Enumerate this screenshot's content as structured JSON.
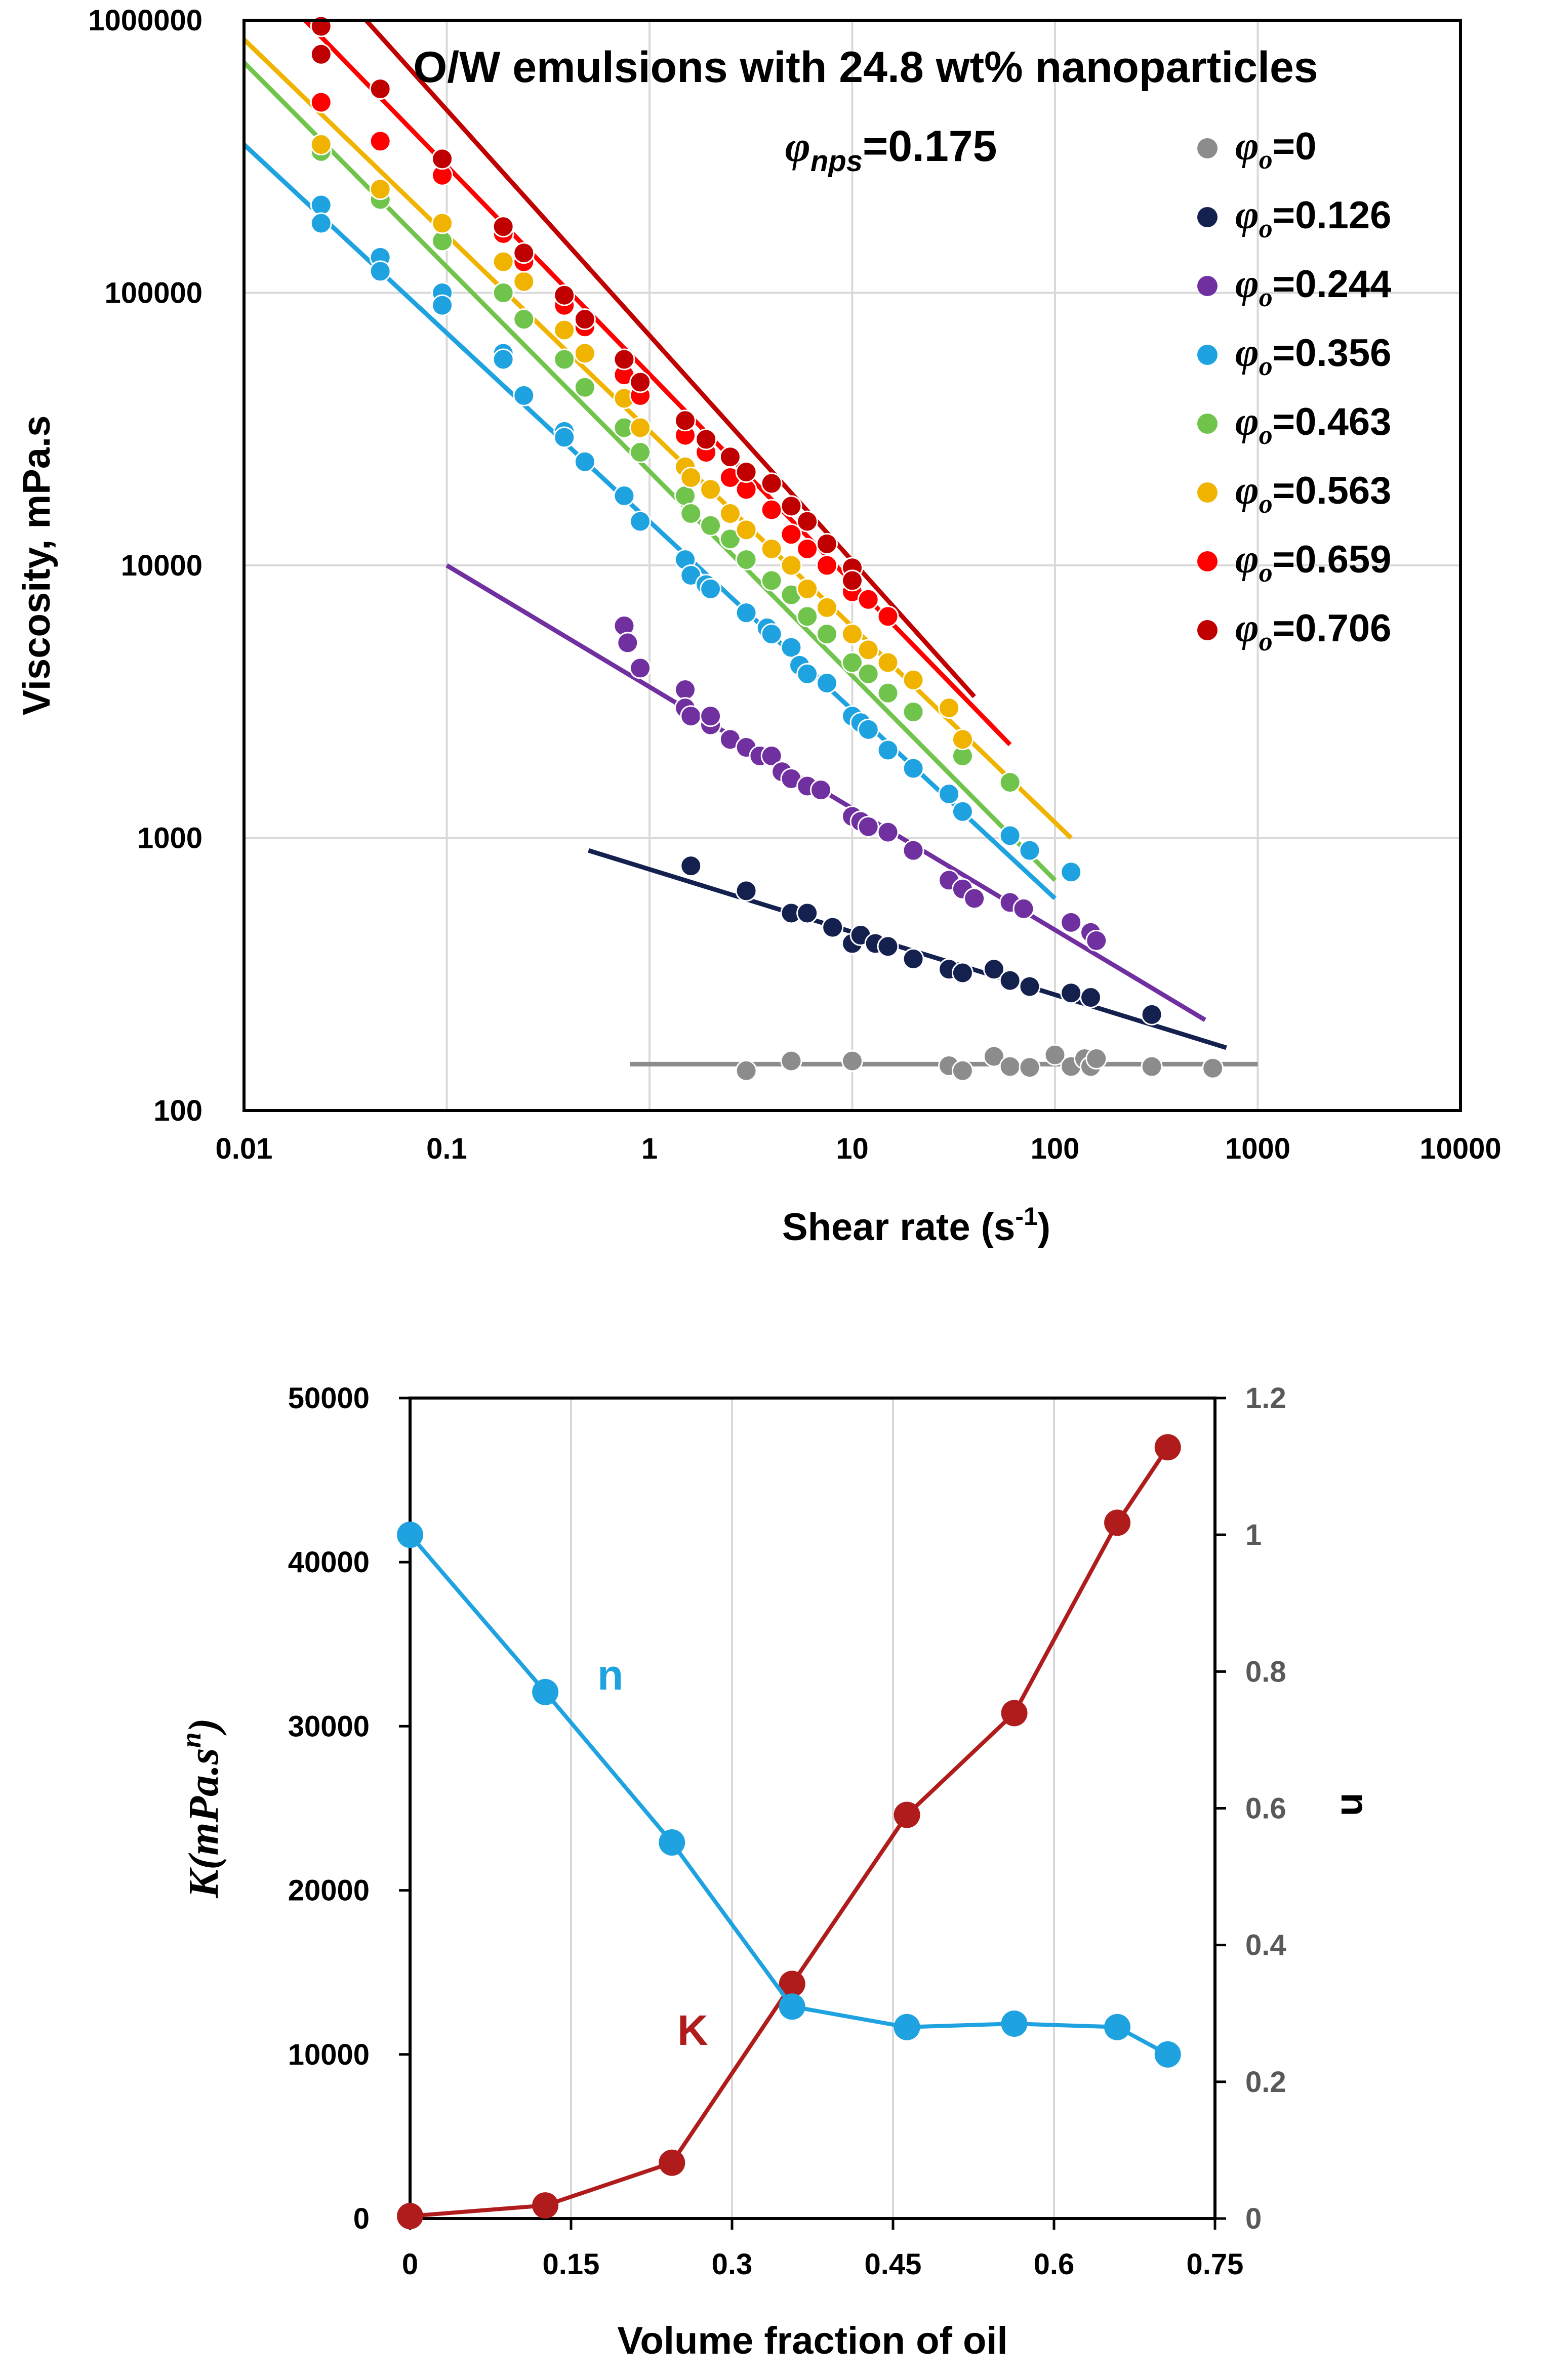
{
  "chart_data": [
    {
      "type": "scatter",
      "title": "O/W emulsions with 24.8 wt% nanoparticles",
      "subtitle": {
        "symbol": "φ",
        "sub": "nps",
        "value": "=0.175"
      },
      "xlabel": "Shear rate (s-1)",
      "ylabel": "Viscosity, mPa.s",
      "xscale": "log",
      "yscale": "log",
      "xlim": [
        0.01,
        10000
      ],
      "ylim": [
        100,
        1000000
      ],
      "xticks": [
        "0.01",
        "0.1",
        "1",
        "10",
        "100",
        "1000",
        "10000"
      ],
      "yticks": [
        "100",
        "1000",
        "10000",
        "100000",
        "1000000"
      ],
      "legend_position": "top-right",
      "series": [
        {
          "name": "φo=0",
          "label_value": "=0",
          "color": "#8c8c8c",
          "points": [
            [
              3,
              140
            ],
            [
              5,
              152
            ],
            [
              10,
              152
            ],
            [
              30,
              146
            ],
            [
              35,
              140
            ],
            [
              50,
              158
            ],
            [
              60,
              145
            ],
            [
              75,
              144
            ],
            [
              100,
              160
            ],
            [
              120,
              145
            ],
            [
              140,
              155
            ],
            [
              150,
              145
            ],
            [
              160,
              155
            ],
            [
              300,
              145
            ],
            [
              600,
              143
            ]
          ],
          "fit": [
            [
              0.8,
              148
            ],
            [
              1000,
              148
            ]
          ]
        },
        {
          "name": "φo=0.126",
          "label_value": "=0.126",
          "color": "#14214f",
          "points": [
            [
              1.6,
              790
            ],
            [
              3,
              640
            ],
            [
              5,
              530
            ],
            [
              6,
              530
            ],
            [
              8,
              470
            ],
            [
              10,
              410
            ],
            [
              11,
              440
            ],
            [
              13,
              410
            ],
            [
              15,
              400
            ],
            [
              20,
              360
            ],
            [
              30,
              330
            ],
            [
              35,
              320
            ],
            [
              50,
              330
            ],
            [
              60,
              300
            ],
            [
              75,
              285
            ],
            [
              120,
              270
            ],
            [
              150,
              260
            ],
            [
              300,
              225
            ]
          ],
          "fit": [
            [
              0.5,
              900
            ],
            [
              700,
              170
            ]
          ]
        },
        {
          "name": "φo=0.244",
          "label_value": "=0.244",
          "color": "#7030a0",
          "points": [
            [
              0.75,
              6000
            ],
            [
              0.78,
              5200
            ],
            [
              0.9,
              4200
            ],
            [
              1.5,
              3500
            ],
            [
              1.5,
              3000
            ],
            [
              1.6,
              2800
            ],
            [
              2,
              2600
            ],
            [
              2,
              2800
            ],
            [
              2.5,
              2300
            ],
            [
              3,
              2150
            ],
            [
              3.5,
              2000
            ],
            [
              4,
              2000
            ],
            [
              4.5,
              1750
            ],
            [
              5,
              1650
            ],
            [
              6,
              1550
            ],
            [
              7,
              1500
            ],
            [
              10,
              1200
            ],
            [
              11,
              1150
            ],
            [
              12,
              1100
            ],
            [
              15,
              1050
            ],
            [
              20,
              900
            ],
            [
              30,
              700
            ],
            [
              35,
              650
            ],
            [
              40,
              600
            ],
            [
              60,
              580
            ],
            [
              70,
              550
            ],
            [
              120,
              490
            ],
            [
              150,
              450
            ],
            [
              160,
              420
            ]
          ],
          "fit": [
            [
              0.1,
              10000
            ],
            [
              550,
              215
            ]
          ]
        },
        {
          "name": "φo=0.356",
          "label_value": "=0.356",
          "color": "#1fa3e0",
          "points": [
            [
              0.024,
              210000
            ],
            [
              0.024,
              180000
            ],
            [
              0.047,
              135000
            ],
            [
              0.047,
              120000
            ],
            [
              0.095,
              100000
            ],
            [
              0.095,
              90000
            ],
            [
              0.19,
              60000
            ],
            [
              0.19,
              57000
            ],
            [
              0.24,
              42000
            ],
            [
              0.38,
              31000
            ],
            [
              0.38,
              29500
            ],
            [
              0.48,
              24000
            ],
            [
              0.75,
              18000
            ],
            [
              0.9,
              14500
            ],
            [
              1.5,
              10500
            ],
            [
              1.6,
              9200
            ],
            [
              1.9,
              8500
            ],
            [
              2,
              8200
            ],
            [
              3,
              6700
            ],
            [
              3.8,
              5900
            ],
            [
              4,
              5600
            ],
            [
              5,
              5000
            ],
            [
              5.5,
              4300
            ],
            [
              6,
              4000
            ],
            [
              7.5,
              3700
            ],
            [
              10,
              2800
            ],
            [
              11,
              2650
            ],
            [
              12,
              2500
            ],
            [
              15,
              2100
            ],
            [
              20,
              1800
            ],
            [
              30,
              1450
            ],
            [
              35,
              1250
            ],
            [
              60,
              1020
            ],
            [
              75,
              900
            ],
            [
              120,
              750
            ]
          ],
          "fit": [
            [
              0.01,
              350000
            ],
            [
              100,
              600
            ]
          ]
        },
        {
          "name": "φo=0.463",
          "label_value": "=0.463",
          "color": "#70c44b",
          "points": [
            [
              0.024,
              330000
            ],
            [
              0.047,
              220000
            ],
            [
              0.095,
              155000
            ],
            [
              0.19,
              100000
            ],
            [
              0.24,
              80000
            ],
            [
              0.38,
              57000
            ],
            [
              0.48,
              45000
            ],
            [
              0.75,
              32000
            ],
            [
              0.9,
              26000
            ],
            [
              1.5,
              18000
            ],
            [
              1.6,
              15500
            ],
            [
              2,
              14000
            ],
            [
              2.5,
              12500
            ],
            [
              3,
              10500
            ],
            [
              4,
              8800
            ],
            [
              5,
              7800
            ],
            [
              6,
              6500
            ],
            [
              7.5,
              5600
            ],
            [
              10,
              4400
            ],
            [
              12,
              4000
            ],
            [
              15,
              3400
            ],
            [
              20,
              2900
            ],
            [
              35,
              2000
            ],
            [
              60,
              1600
            ]
          ],
          "fit": [
            [
              0.01,
              700000
            ],
            [
              100,
              700
            ]
          ]
        },
        {
          "name": "φo=0.563",
          "label_value": "=0.563",
          "color": "#f0b400",
          "points": [
            [
              0.024,
              350000
            ],
            [
              0.047,
              240000
            ],
            [
              0.095,
              180000
            ],
            [
              0.19,
              130000
            ],
            [
              0.24,
              110000
            ],
            [
              0.38,
              73000
            ],
            [
              0.48,
              60000
            ],
            [
              0.75,
              41000
            ],
            [
              0.9,
              32000
            ],
            [
              1.5,
              23000
            ],
            [
              1.6,
              21000
            ],
            [
              2,
              19000
            ],
            [
              2.5,
              15500
            ],
            [
              3,
              13500
            ],
            [
              4,
              11500
            ],
            [
              5,
              10000
            ],
            [
              6,
              8200
            ],
            [
              7.5,
              7000
            ],
            [
              10,
              5600
            ],
            [
              12,
              4900
            ],
            [
              15,
              4400
            ],
            [
              20,
              3800
            ],
            [
              30,
              3000
            ],
            [
              35,
              2300
            ]
          ],
          "fit": [
            [
              0.01,
              850000
            ],
            [
              120,
              1000
            ]
          ]
        },
        {
          "name": "φo=0.659",
          "label_value": "=0.659",
          "color": "#ff0000",
          "points": [
            [
              0.024,
              500000
            ],
            [
              0.047,
              360000
            ],
            [
              0.095,
              270000
            ],
            [
              0.19,
              165000
            ],
            [
              0.24,
              130000
            ],
            [
              0.38,
              90000
            ],
            [
              0.48,
              75000
            ],
            [
              0.75,
              50000
            ],
            [
              0.9,
              42000
            ],
            [
              1.5,
              30000
            ],
            [
              1.9,
              26000
            ],
            [
              2.5,
              21000
            ],
            [
              3,
              19000
            ],
            [
              4,
              16000
            ],
            [
              5,
              13000
            ],
            [
              6,
              11500
            ],
            [
              7.5,
              10000
            ],
            [
              10,
              8000
            ],
            [
              12,
              7500
            ],
            [
              15,
              6500
            ]
          ],
          "fit": [
            [
              0.02,
              1000000
            ],
            [
              60,
              2200
            ]
          ]
        },
        {
          "name": "φo=0.706",
          "label_value": "=0.706",
          "color": "#c00000",
          "points": [
            [
              0.024,
              950000
            ],
            [
              0.024,
              750000
            ],
            [
              0.047,
              560000
            ],
            [
              0.095,
              310000
            ],
            [
              0.19,
              175000
            ],
            [
              0.24,
              140000
            ],
            [
              0.38,
              98000
            ],
            [
              0.48,
              80000
            ],
            [
              0.75,
              57000
            ],
            [
              0.9,
              47000
            ],
            [
              1.5,
              34000
            ],
            [
              1.9,
              29000
            ],
            [
              2.5,
              25000
            ],
            [
              3,
              22000
            ],
            [
              4,
              20000
            ],
            [
              5,
              16500
            ],
            [
              6,
              14500
            ],
            [
              7.5,
              12000
            ],
            [
              10,
              9800
            ],
            [
              10,
              8800
            ]
          ],
          "fit": [
            [
              0.04,
              1000000
            ],
            [
              40,
              3300
            ]
          ]
        }
      ]
    },
    {
      "type": "line",
      "xlabel": "Volume fraction of oil",
      "ylabel": "K(mPa.s^n)",
      "ylabel_parts": {
        "base": "K(mPa.s",
        "sup": "n",
        "close": ")"
      },
      "y2label": "n",
      "xlim": [
        0,
        0.75
      ],
      "ylim": [
        0,
        50000
      ],
      "y2lim": [
        0,
        1.2
      ],
      "xticks": [
        "0",
        "0.15",
        "0.3",
        "0.45",
        "0.6",
        "0.75"
      ],
      "yticks": [
        "0",
        "10000",
        "20000",
        "30000",
        "40000",
        "50000"
      ],
      "y2ticks": [
        "0",
        "0.2",
        "0.4",
        "0.6",
        "0.8",
        "1",
        "1.2"
      ],
      "series": [
        {
          "name": "K",
          "axis": "left",
          "color": "#b01c1c",
          "label": "K",
          "x": [
            0,
            0.126,
            0.244,
            0.356,
            0.463,
            0.563,
            0.659,
            0.706
          ],
          "values": [
            150,
            800,
            3400,
            14300,
            24600,
            30800,
            42400,
            47000
          ]
        },
        {
          "name": "n",
          "axis": "right",
          "color": "#1fa3e0",
          "label": "n",
          "x": [
            0,
            0.126,
            0.244,
            0.356,
            0.463,
            0.563,
            0.659,
            0.706
          ],
          "values": [
            1.0,
            0.77,
            0.55,
            0.31,
            0.28,
            0.285,
            0.28,
            0.24
          ]
        }
      ]
    }
  ]
}
